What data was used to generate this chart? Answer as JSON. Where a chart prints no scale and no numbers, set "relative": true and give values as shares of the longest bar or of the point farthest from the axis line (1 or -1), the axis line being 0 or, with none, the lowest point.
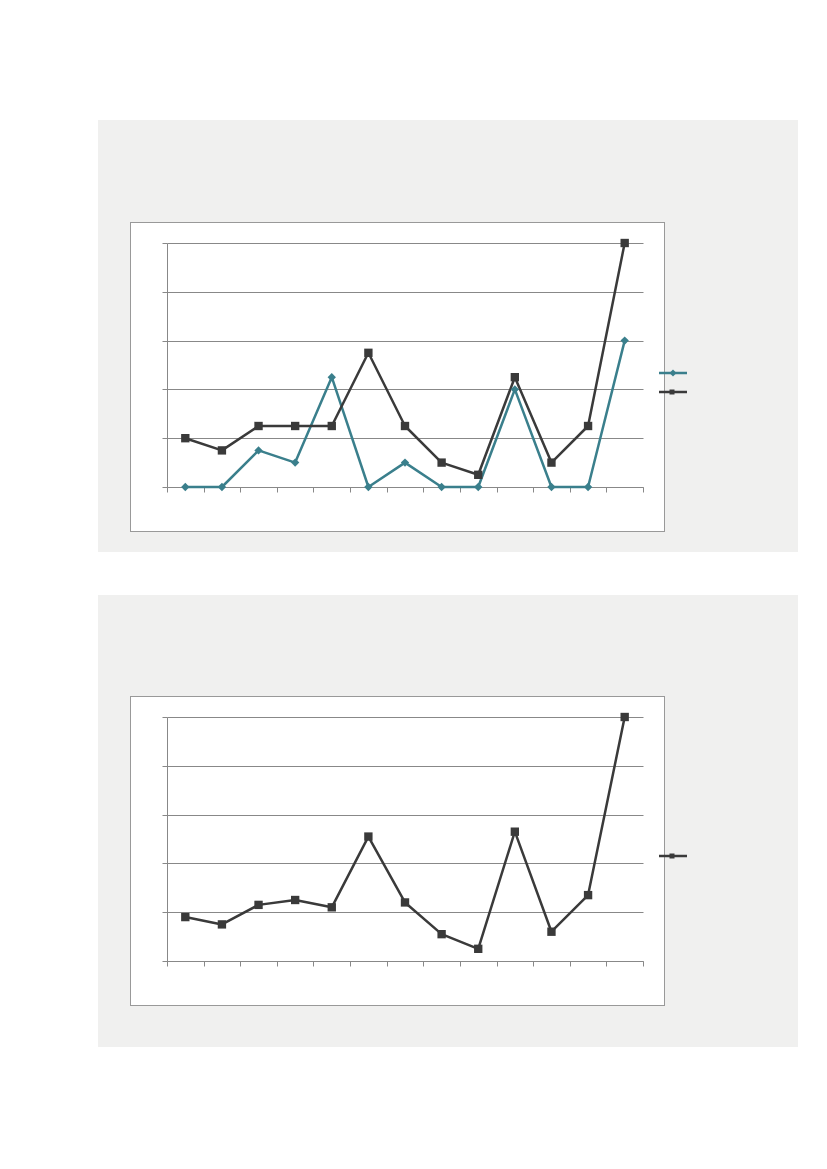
{
  "chart_data": [
    {
      "type": "line",
      "relative": true,
      "categories": [
        null,
        null,
        null,
        null,
        null,
        null,
        null,
        null,
        null,
        null,
        null,
        null,
        null
      ],
      "series": [
        {
          "color": "#3a7f8c",
          "marker": "diamond",
          "values": [
            0,
            0,
            0.15,
            0.1,
            0.45,
            0,
            0.1,
            0,
            0,
            0.4,
            0,
            0,
            0.6
          ]
        },
        {
          "color": "#3a3a3a",
          "marker": "square",
          "values": [
            0.2,
            0.15,
            0.25,
            0.25,
            0.25,
            0.55,
            0.25,
            0.1,
            0.05,
            0.45,
            0.1,
            0.25,
            1
          ]
        }
      ],
      "grid": "y"
    },
    {
      "type": "line",
      "relative": true,
      "categories": [
        null,
        null,
        null,
        null,
        null,
        null,
        null,
        null,
        null,
        null,
        null,
        null,
        null
      ],
      "series": [
        {
          "color": "#3a3a3a",
          "marker": "square",
          "values": [
            0.18,
            0.15,
            0.23,
            0.25,
            0.22,
            0.51,
            0.24,
            0.11,
            0.05,
            0.53,
            0.12,
            0.27,
            1
          ]
        }
      ],
      "grid": "y"
    }
  ]
}
